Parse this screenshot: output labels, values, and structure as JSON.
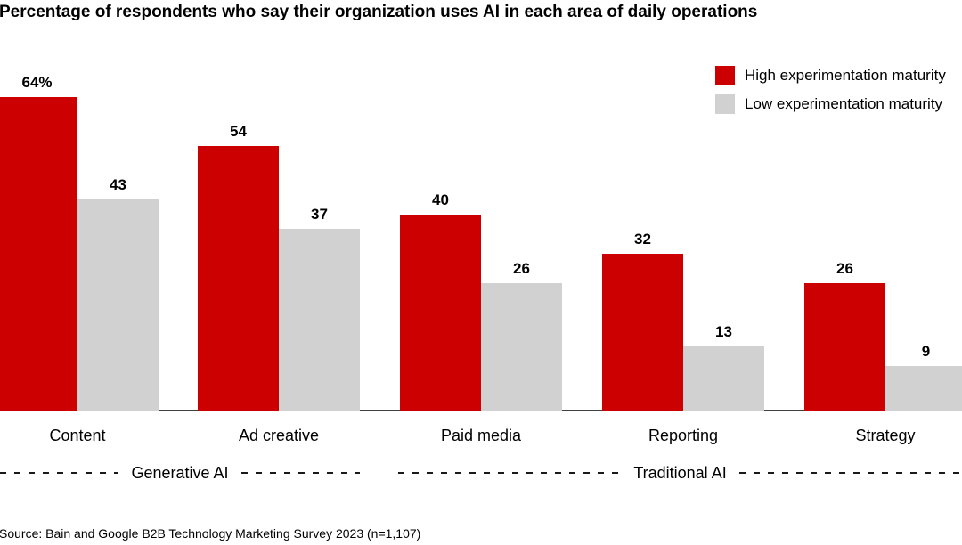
{
  "title": "Percentage of respondents who say their organization uses AI in each area of daily operations",
  "legend": [
    {
      "label": "High experimentation maturity",
      "color": "#cc0000"
    },
    {
      "label": "Low experimentation maturity",
      "color": "#d1d1d1"
    }
  ],
  "chart_data": {
    "type": "bar",
    "title": "Percentage of respondents who say their organization uses AI in each area of daily operations",
    "categories": [
      "Content",
      "Ad creative",
      "Paid media",
      "Reporting",
      "Strategy"
    ],
    "series": [
      {
        "name": "High experimentation maturity",
        "color": "#cc0000",
        "values": [
          64,
          54,
          40,
          32,
          26
        ],
        "value_labels": [
          "64%",
          "54",
          "40",
          "32",
          "26"
        ]
      },
      {
        "name": "Low experimentation maturity",
        "color": "#d1d1d1",
        "values": [
          43,
          37,
          26,
          13,
          9
        ],
        "value_labels": [
          "43",
          "37",
          "26",
          "13",
          "9"
        ]
      }
    ],
    "group_labels": [
      {
        "label": "Generative AI",
        "categories": [
          "Content",
          "Ad creative"
        ]
      },
      {
        "label": "Traditional AI",
        "categories": [
          "Paid media",
          "Reporting",
          "Strategy"
        ]
      }
    ],
    "ylim": [
      0,
      70
    ],
    "grid": false,
    "axis_line_color": "#404040",
    "legend_position": "top-right"
  },
  "source": "Source: Bain and Google B2B Technology Marketing Survey 2023 (n=1,107)"
}
